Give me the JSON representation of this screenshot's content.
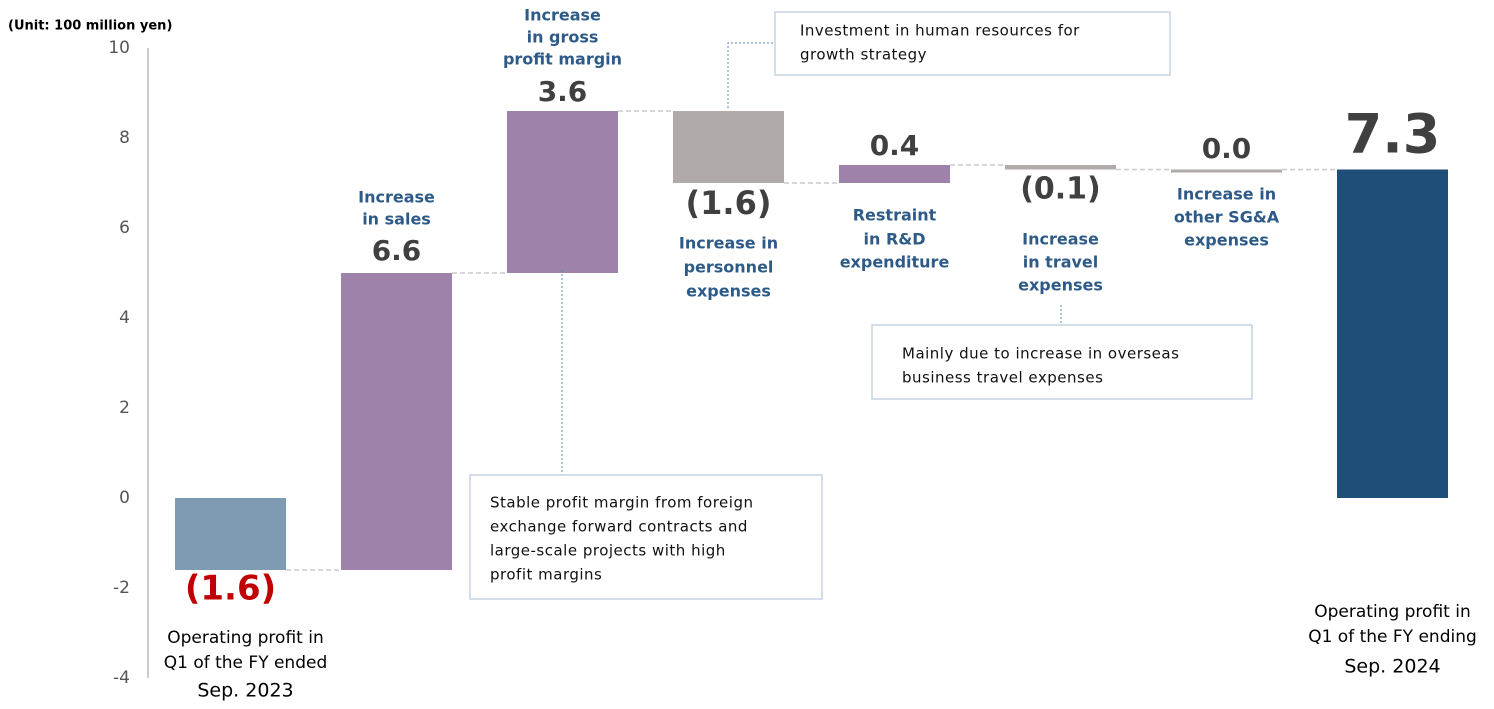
{
  "chart_data": {
    "type": "waterfall",
    "unit_label": "(Unit: 100 million yen)",
    "categories": [
      [
        "Operating profit in",
        "Q1 of the FY ended",
        "Sep. 2023"
      ],
      [
        "Increase",
        "in sales"
      ],
      [
        "Increase",
        "in gross",
        "profit margin"
      ],
      [
        "Increase in",
        "personnel",
        "expenses"
      ],
      [
        "Restraint",
        "in R&D",
        "expenditure"
      ],
      [
        "Increase",
        "in travel",
        "expenses"
      ],
      [
        "Increase in",
        "other SG&A",
        "expenses"
      ],
      [
        "Operating profit in",
        "Q1 of the FY ending",
        "Sep. 2024"
      ]
    ],
    "measure": [
      "absolute",
      "relative",
      "relative",
      "relative",
      "relative",
      "relative",
      "relative",
      "total"
    ],
    "values": [
      -1.6,
      6.6,
      3.6,
      -1.6,
      0.4,
      -0.1,
      0.0,
      7.3
    ],
    "value_labels": [
      "(1.6)",
      "6.6",
      "3.6",
      "(1.6)",
      "0.4",
      "(0.1)",
      "0.0",
      "7.3"
    ],
    "colors": [
      "#7f9bb3",
      "#9e82a9",
      "#9e82a9",
      "#b0aaa9",
      "#9e82a9",
      "#b0aaa9",
      "#b0aaa9",
      "#1f4e79"
    ],
    "value_label_colors": [
      "#c00000",
      "#404040",
      "#404040",
      "#404040",
      "#404040",
      "#404040",
      "#404040",
      "#404040"
    ],
    "ylim": [
      -4,
      10
    ],
    "yticks": [
      -4,
      -2,
      0,
      2,
      4,
      6,
      8,
      10
    ],
    "annotations": [
      [
        "Investment in human resources for",
        "growth strategy"
      ],
      [
        "Mainly due to increase in overseas",
        "business travel expenses"
      ],
      [
        "Stable profit margin from foreign",
        "exchange forward contracts and",
        "large-scale projects with high",
        "profit margins"
      ]
    ]
  }
}
